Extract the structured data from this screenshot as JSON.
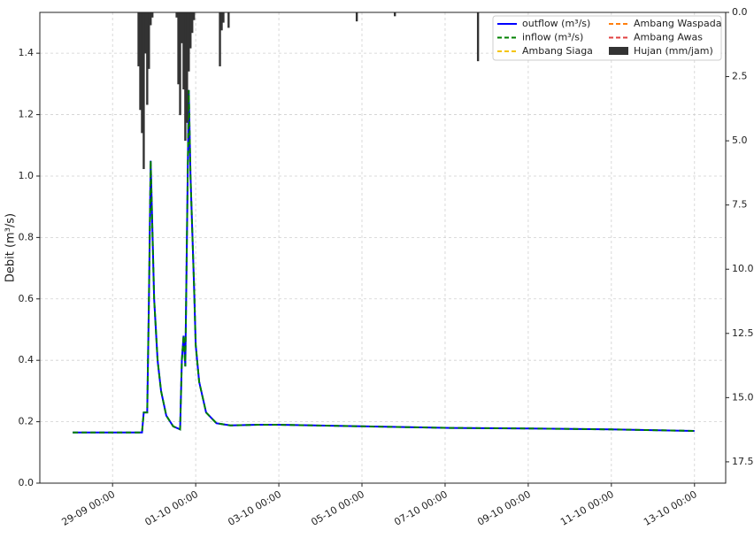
{
  "chart_data": {
    "type": "line",
    "y_label": "Debit (m³/s)",
    "x": [
      "28-09 01:00",
      "29-09 16:00",
      "29-09 17:00",
      "29-09 18:00",
      "29-09 20:00",
      "29-09 21:00",
      "29-09 22:00",
      "30-09 00:00",
      "30-09 02:00",
      "30-09 04:00",
      "30-09 07:00",
      "30-09 11:00",
      "30-09 15:00",
      "30-09 16:00",
      "30-09 17:00",
      "30-09 18:00",
      "30-09 20:00",
      "30-09 21:00",
      "30-09 23:00",
      "01-10 00:00",
      "01-10 02:00",
      "01-10 06:00",
      "01-10 12:00",
      "01-10 20:00",
      "02-10 12:00",
      "03-10 00:00",
      "05-10 00:00",
      "07-10 00:00",
      "09-10 00:00",
      "11-10 00:00",
      "13-10 00:00"
    ],
    "series": [
      {
        "name": "outflow (m³/s)",
        "color": "#0000ff",
        "style": "solid",
        "values": [
          0.165,
          0.165,
          0.165,
          0.23,
          0.23,
          0.6,
          1.05,
          0.6,
          0.4,
          0.3,
          0.22,
          0.185,
          0.175,
          0.4,
          0.48,
          0.38,
          1.28,
          1.0,
          0.65,
          0.45,
          0.33,
          0.23,
          0.195,
          0.188,
          0.19,
          0.19,
          0.185,
          0.18,
          0.178,
          0.175,
          0.17
        ]
      },
      {
        "name": "inflow (m³/s)",
        "color": "#008000",
        "style": "dashed",
        "values": [
          0.165,
          0.165,
          0.165,
          0.23,
          0.23,
          0.6,
          1.05,
          0.6,
          0.4,
          0.3,
          0.22,
          0.185,
          0.175,
          0.4,
          0.48,
          0.38,
          1.28,
          1.0,
          0.65,
          0.45,
          0.33,
          0.23,
          0.195,
          0.188,
          0.19,
          0.19,
          0.185,
          0.18,
          0.178,
          0.175,
          0.17
        ]
      },
      {
        "name": "Ambang Siaga",
        "color": "#f5c400",
        "style": "dashed"
      },
      {
        "name": "Ambang Waspada",
        "color": "#ff7f0e",
        "style": "dashed"
      },
      {
        "name": "Ambang Awas",
        "color": "#e04040",
        "style": "dashed"
      },
      {
        "name": "Hujan (mm/jam)",
        "color": "#333333",
        "type": "bar",
        "axis": "y2",
        "x": [
          "29-09 15:00",
          "29-09 16:00",
          "29-09 17:00",
          "29-09 18:00",
          "29-09 19:00",
          "29-09 20:00",
          "29-09 21:00",
          "29-09 22:00",
          "29-09 23:00",
          "30-09 13:00",
          "30-09 14:00",
          "30-09 15:00",
          "30-09 16:00",
          "30-09 17:00",
          "30-09 18:00",
          "30-09 19:00",
          "30-09 20:00",
          "30-09 21:00",
          "30-09 22:00",
          "30-09 23:00",
          "01-10 14:00",
          "01-10 15:00",
          "01-10 16:00",
          "01-10 19:00",
          "04-10 21:00",
          "05-10 19:00",
          "07-10 19:00"
        ],
        "values": [
          2.1,
          3.8,
          4.7,
          6.1,
          1.6,
          3.6,
          2.2,
          0.5,
          0.2,
          0.2,
          2.8,
          4.0,
          1.2,
          3.0,
          5.0,
          4.3,
          2.3,
          1.4,
          0.8,
          0.3,
          2.1,
          0.7,
          0.4,
          0.6,
          0.35,
          0.15,
          1.9
        ]
      }
    ],
    "xlim": [
      "27-09 06:00",
      "13-10 18:00"
    ],
    "xticks": [
      "29-09 00:00",
      "01-10 00:00",
      "03-10 00:00",
      "05-10 00:00",
      "07-10 00:00",
      "09-10 00:00",
      "11-10 00:00",
      "13-10 00:00"
    ],
    "ylim": [
      0,
      1.533
    ],
    "yticks": [
      {
        "value": 0,
        "label": "0.0"
      },
      0.2,
      0.4,
      0.6,
      0.8,
      {
        "value": 1,
        "label": "1.0"
      },
      1.2,
      1.4
    ],
    "y2lim": [
      0,
      18.33
    ],
    "y2_inverted": true,
    "y2ticks": [
      {
        "value": 0,
        "label": "0.0"
      },
      2.5,
      {
        "value": 5,
        "label": "5.0"
      },
      7.5,
      {
        "value": 10,
        "label": "10.0"
      },
      12.5,
      {
        "value": 15,
        "label": "15.0"
      },
      17.5
    ],
    "grid": true,
    "legend": "upper right"
  }
}
